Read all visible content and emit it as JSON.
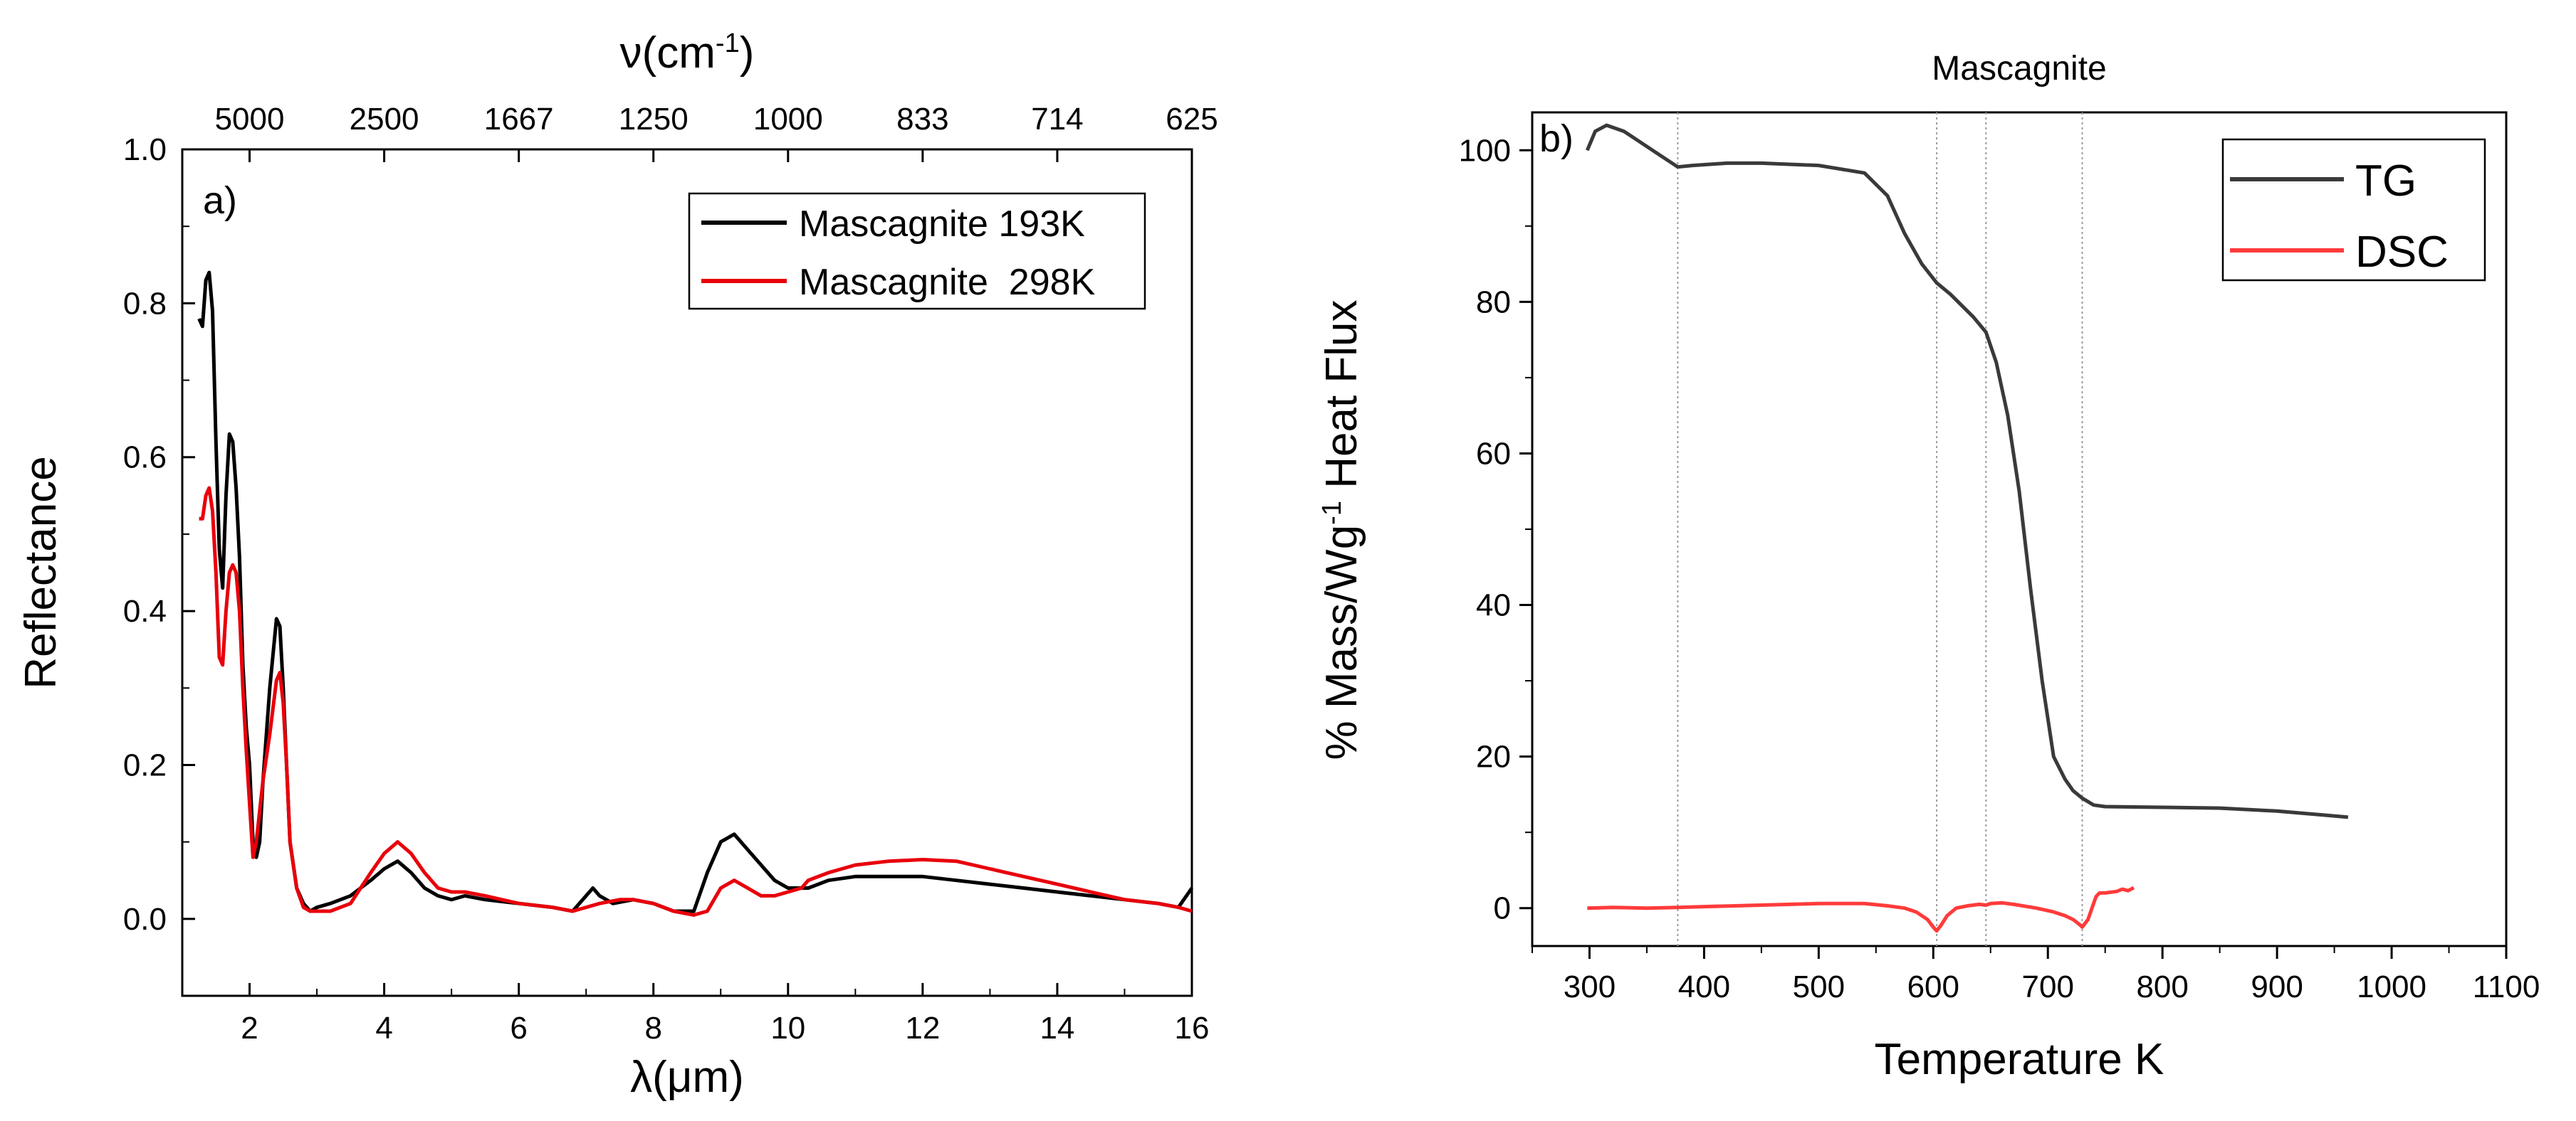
{
  "chart_data": [
    {
      "type": "line",
      "panel_label": "a)",
      "xlabel": "λ(μm)",
      "ylabel": "Reflectance",
      "top_axis_label_base": "ν(cm",
      "top_axis_label_sup": "-1",
      "top_axis_label_end": ")",
      "xlim": [
        1,
        16
      ],
      "ylim": [
        -0.1,
        1.0
      ],
      "x_ticks": [
        2,
        4,
        6,
        8,
        10,
        12,
        14,
        16
      ],
      "y_ticks": [
        0.0,
        0.2,
        0.4,
        0.6,
        0.8,
        1.0
      ],
      "x_tick_labels": [
        "2",
        "4",
        "6",
        "8",
        "10",
        "12",
        "14",
        "16"
      ],
      "y_tick_labels": [
        "0.0",
        "0.2",
        "0.4",
        "0.6",
        "0.8",
        "1.0"
      ],
      "top_ticks": [
        {
          "at": 2.0,
          "label": "5000"
        },
        {
          "at": 4.0,
          "label": "2500"
        },
        {
          "at": 6.0,
          "label": "1667"
        },
        {
          "at": 8.0,
          "label": "1250"
        },
        {
          "at": 10.0,
          "label": "1000"
        },
        {
          "at": 12.0,
          "label": "833"
        },
        {
          "at": 14.0,
          "label": "714"
        },
        {
          "at": 16.0,
          "label": "625"
        }
      ],
      "legend_position": "top-right",
      "series": [
        {
          "name": "Mascagnite 193K",
          "color": "#000000",
          "x": [
            1.25,
            1.3,
            1.35,
            1.4,
            1.45,
            1.5,
            1.55,
            1.6,
            1.65,
            1.7,
            1.75,
            1.8,
            1.85,
            1.9,
            1.95,
            2.0,
            2.05,
            2.1,
            2.15,
            2.2,
            2.3,
            2.4,
            2.45,
            2.5,
            2.55,
            2.6,
            2.7,
            2.8,
            2.9,
            3.0,
            3.2,
            3.5,
            3.8,
            4.0,
            4.2,
            4.4,
            4.6,
            4.8,
            5.0,
            5.2,
            5.5,
            6.0,
            6.5,
            6.8,
            7.0,
            7.1,
            7.2,
            7.4,
            7.7,
            8.0,
            8.3,
            8.6,
            8.8,
            9.0,
            9.2,
            9.4,
            9.6,
            9.8,
            10.0,
            10.3,
            10.6,
            11.0,
            11.5,
            12.0,
            12.5,
            13.0,
            13.5,
            14.0,
            14.5,
            15.0,
            15.5,
            15.8,
            16.0
          ],
          "y": [
            0.78,
            0.77,
            0.83,
            0.84,
            0.79,
            0.62,
            0.48,
            0.43,
            0.55,
            0.63,
            0.62,
            0.56,
            0.47,
            0.33,
            0.25,
            0.2,
            0.1,
            0.08,
            0.1,
            0.18,
            0.3,
            0.39,
            0.38,
            0.3,
            0.2,
            0.1,
            0.04,
            0.02,
            0.01,
            0.015,
            0.02,
            0.03,
            0.05,
            0.065,
            0.075,
            0.06,
            0.04,
            0.03,
            0.025,
            0.03,
            0.025,
            0.02,
            0.015,
            0.01,
            0.03,
            0.04,
            0.03,
            0.02,
            0.025,
            0.02,
            0.01,
            0.01,
            0.06,
            0.1,
            0.11,
            0.09,
            0.07,
            0.05,
            0.04,
            0.04,
            0.05,
            0.055,
            0.055,
            0.055,
            0.05,
            0.045,
            0.04,
            0.035,
            0.03,
            0.025,
            0.02,
            0.015,
            0.04
          ]
        },
        {
          "name": "Mascagnite  298K",
          "color": "#e8000b",
          "x": [
            1.25,
            1.3,
            1.35,
            1.4,
            1.45,
            1.5,
            1.55,
            1.6,
            1.65,
            1.7,
            1.75,
            1.8,
            1.85,
            1.9,
            1.95,
            2.0,
            2.05,
            2.1,
            2.15,
            2.2,
            2.3,
            2.4,
            2.45,
            2.5,
            2.55,
            2.6,
            2.7,
            2.8,
            2.9,
            3.0,
            3.2,
            3.5,
            3.8,
            4.0,
            4.2,
            4.4,
            4.6,
            4.8,
            5.0,
            5.2,
            5.5,
            6.0,
            6.5,
            6.8,
            7.0,
            7.2,
            7.5,
            7.7,
            8.0,
            8.3,
            8.6,
            8.8,
            9.0,
            9.2,
            9.4,
            9.6,
            9.8,
            10.0,
            10.2,
            10.3,
            10.6,
            11.0,
            11.5,
            12.0,
            12.5,
            13.0,
            13.5,
            14.0,
            14.5,
            15.0,
            15.5,
            15.8,
            16.0
          ],
          "y": [
            0.52,
            0.52,
            0.55,
            0.56,
            0.53,
            0.45,
            0.34,
            0.33,
            0.4,
            0.45,
            0.46,
            0.45,
            0.4,
            0.3,
            0.22,
            0.15,
            0.08,
            0.1,
            0.14,
            0.18,
            0.24,
            0.31,
            0.32,
            0.28,
            0.2,
            0.1,
            0.04,
            0.015,
            0.01,
            0.01,
            0.01,
            0.02,
            0.06,
            0.085,
            0.1,
            0.085,
            0.06,
            0.04,
            0.035,
            0.035,
            0.03,
            0.02,
            0.015,
            0.01,
            0.015,
            0.02,
            0.025,
            0.025,
            0.02,
            0.01,
            0.005,
            0.01,
            0.04,
            0.05,
            0.04,
            0.03,
            0.03,
            0.035,
            0.04,
            0.05,
            0.06,
            0.07,
            0.075,
            0.077,
            0.075,
            0.065,
            0.055,
            0.045,
            0.035,
            0.025,
            0.02,
            0.015,
            0.01
          ]
        }
      ]
    },
    {
      "type": "line",
      "panel_label": "b)",
      "title": "Mascagnite",
      "xlabel": "Temperature K",
      "ylabel_base": "% Mass/Wg",
      "ylabel_sup": "-1",
      "ylabel_end": " Heat Flux",
      "xlim": [
        250,
        1100
      ],
      "ylim": [
        -5,
        105
      ],
      "x_ticks": [
        300,
        400,
        500,
        600,
        700,
        800,
        900,
        1000,
        1100
      ],
      "y_ticks": [
        0,
        20,
        40,
        60,
        80,
        100
      ],
      "x_tick_labels": [
        "300",
        "400",
        "500",
        "600",
        "700",
        "800",
        "900",
        "1000",
        "1100"
      ],
      "y_tick_labels": [
        "0",
        "20",
        "40",
        "60",
        "80",
        "100"
      ],
      "vertical_reference_lines": [
        377,
        603,
        646,
        730
      ],
      "legend_position": "top-right",
      "series": [
        {
          "name": "TG",
          "color": "#3a3a3a",
          "x": [
            298,
            305,
            315,
            330,
            345,
            360,
            377,
            390,
            420,
            450,
            500,
            540,
            560,
            575,
            590,
            603,
            615,
            625,
            635,
            646,
            655,
            665,
            675,
            685,
            695,
            705,
            715,
            722,
            730,
            740,
            750,
            800,
            850,
            900,
            940,
            962
          ],
          "y": [
            100,
            102.5,
            103.3,
            102.5,
            101,
            99.5,
            97.8,
            98,
            98.3,
            98.3,
            98,
            97,
            94,
            89,
            85,
            82.5,
            81,
            79.5,
            78,
            76,
            72,
            65,
            55,
            42,
            30,
            20,
            17,
            15.5,
            14.5,
            13.6,
            13.4,
            13.3,
            13.2,
            12.8,
            12.3,
            12
          ]
        },
        {
          "name": "DSC",
          "color": "#ff3b3b",
          "x": [
            298,
            320,
            350,
            377,
            400,
            450,
            500,
            540,
            560,
            575,
            585,
            595,
            600,
            603,
            607,
            612,
            620,
            630,
            640,
            646,
            650,
            660,
            670,
            690,
            705,
            715,
            722,
            728,
            730,
            735,
            742,
            745,
            750,
            760,
            765,
            770,
            775
          ],
          "y": [
            0,
            0.1,
            0,
            0.1,
            0.2,
            0.4,
            0.6,
            0.6,
            0.3,
            0,
            -0.5,
            -1.5,
            -2.5,
            -3,
            -2.2,
            -1,
            0,
            0.3,
            0.5,
            0.4,
            0.6,
            0.7,
            0.5,
            0,
            -0.5,
            -1,
            -1.5,
            -2.2,
            -2.5,
            -1.5,
            1.5,
            2,
            2,
            2.2,
            2.5,
            2.3,
            2.7
          ]
        }
      ]
    }
  ]
}
